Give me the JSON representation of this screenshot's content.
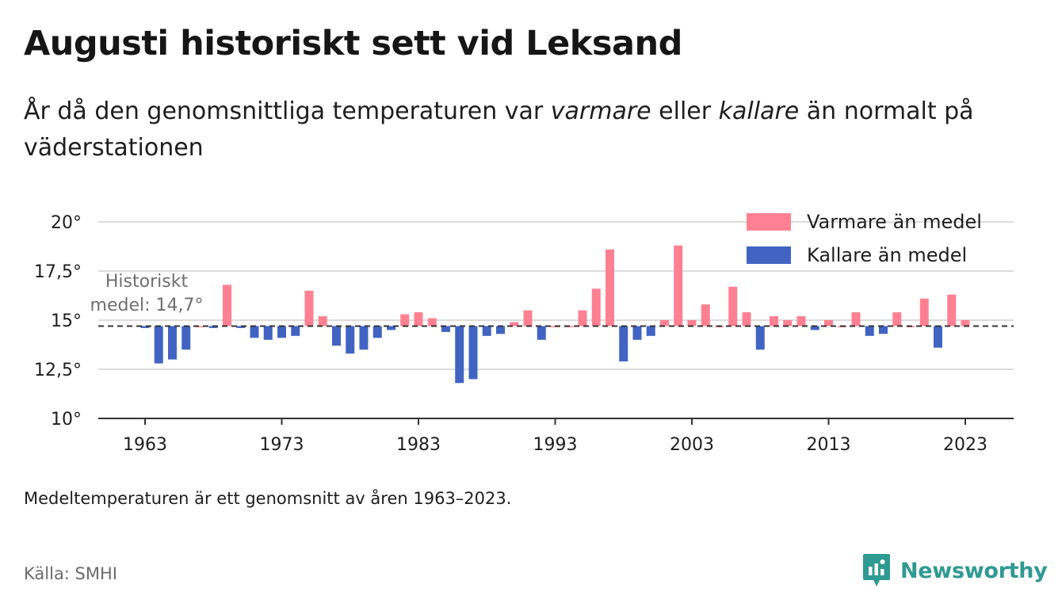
{
  "title": "Augusti historiskt sett vid Leksand",
  "subtitle": {
    "part1": "År då den genomsnittliga temperaturen var ",
    "warm_word": "varmare",
    "part2": " eller ",
    "cold_word": "kallare",
    "part3": " än normalt på väderstationen"
  },
  "note": "Medeltemperaturen är ett genomsnitt av åren 1963–2023.",
  "source": "Källa: SMHI",
  "brand": {
    "name": "Newsworthy",
    "icon": "newsworthy-logo-icon",
    "color": "#2f9a91"
  },
  "chart_data": {
    "type": "bar",
    "x": [
      1963,
      1964,
      1965,
      1966,
      1967,
      1968,
      1969,
      1970,
      1971,
      1972,
      1973,
      1974,
      1975,
      1976,
      1977,
      1978,
      1979,
      1980,
      1981,
      1982,
      1983,
      1984,
      1985,
      1986,
      1987,
      1988,
      1989,
      1990,
      1991,
      1992,
      1993,
      1994,
      1995,
      1996,
      1997,
      1998,
      1999,
      2000,
      2001,
      2002,
      2003,
      2004,
      2005,
      2006,
      2007,
      2008,
      2009,
      2010,
      2011,
      2012,
      2013,
      2014,
      2015,
      2016,
      2017,
      2018,
      2019,
      2020,
      2021,
      2022,
      2023
    ],
    "values": [
      14.6,
      12.8,
      13.0,
      13.5,
      14.7,
      14.6,
      16.8,
      14.6,
      14.1,
      14.0,
      14.1,
      14.2,
      16.5,
      15.2,
      13.7,
      13.3,
      13.5,
      14.1,
      14.5,
      15.3,
      15.4,
      15.1,
      14.4,
      11.8,
      12.0,
      14.2,
      14.3,
      14.9,
      15.5,
      14.0,
      14.7,
      14.7,
      15.5,
      16.6,
      18.6,
      12.9,
      14.0,
      14.2,
      15.0,
      18.8,
      15.0,
      15.8,
      14.7,
      16.7,
      15.4,
      13.5,
      15.2,
      15.0,
      15.2,
      14.5,
      15.0,
      14.7,
      15.4,
      14.2,
      14.3,
      15.4,
      14.7,
      16.1,
      13.6,
      16.3,
      15.0
    ],
    "baseline": 14.7,
    "baseline_label": [
      "Historiskt",
      "medel: 14,7°"
    ],
    "ylim": [
      10,
      20
    ],
    "yticks": [
      10,
      12.5,
      15,
      17.5,
      20
    ],
    "ytick_labels": [
      "10°",
      "12,5°",
      "15°",
      "17,5°",
      "20°"
    ],
    "xticks": [
      1963,
      1973,
      1983,
      1993,
      2003,
      2013,
      2023
    ],
    "xtick_labels": [
      "1963",
      "1973",
      "1983",
      "1993",
      "2003",
      "2013",
      "2023"
    ],
    "grid": true,
    "legend_position": "top-right",
    "legend": [
      {
        "name": "Varmare än medel",
        "color": "#ff8092"
      },
      {
        "name": "Kallare än medel",
        "color": "#4164c3"
      }
    ]
  }
}
